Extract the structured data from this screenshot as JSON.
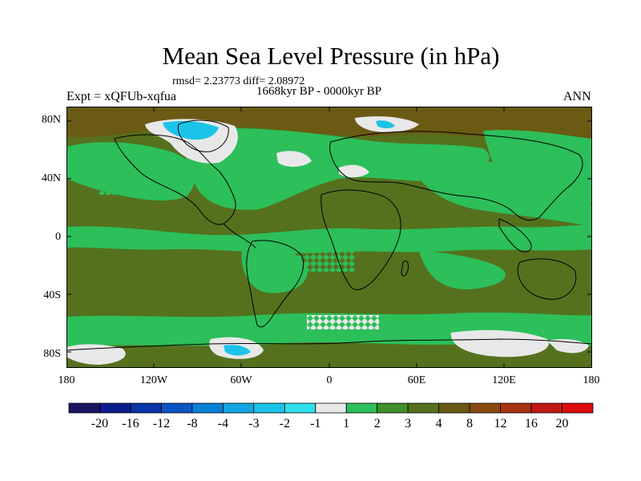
{
  "title": "Mean Sea Level Pressure (in hPa)",
  "stats_text": "rmsd= 2.23773 diff= 2.08972",
  "period_text": "1668kyr BP - 0000kyr BP",
  "expt_text": "Expt = xQFUb-xqfua",
  "season_text": "ANN",
  "lat_labels": [
    "80N",
    "40N",
    "0",
    "40S",
    "80S"
  ],
  "lon_labels": [
    "180",
    "120W",
    "60W",
    "0",
    "60E",
    "120E",
    "180"
  ],
  "colorbar": {
    "labels": [
      "-20",
      "-16",
      "-12",
      "-8",
      "-4",
      "-3",
      "-2",
      "-1",
      "1",
      "2",
      "3",
      "4",
      "8",
      "12",
      "16",
      "20"
    ],
    "colors": [
      "#1a1463",
      "#0d1b8a",
      "#0a34a8",
      "#0a55c6",
      "#0a7fd6",
      "#14a4e2",
      "#1cc3e8",
      "#2ee0ea",
      "#e8e8e8",
      "#2cbf5a",
      "#3f8f2a",
      "#55711e",
      "#6b5a14",
      "#8a4a10",
      "#a83214",
      "#c21a12",
      "#dd0c0c"
    ]
  },
  "legend_colors": {
    "ocean_green": "#2cbf5a",
    "olive": "#55711e",
    "brown": "#6b5a14",
    "light": "#e8e8e8",
    "cyan": "#1cc3e8"
  }
}
